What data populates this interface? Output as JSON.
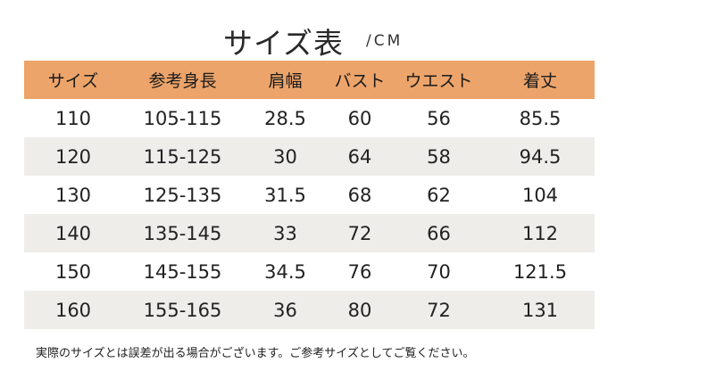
{
  "title": "サイズ表",
  "unit": "/CM",
  "headers": [
    "サイズ",
    "参考身長",
    "肩幅",
    "バスト",
    "ウエスト",
    "着丈"
  ],
  "rows": [
    [
      "110",
      "105-115",
      "28.5",
      "60",
      "56",
      "85.5"
    ],
    [
      "120",
      "115-125",
      "30",
      "64",
      "58",
      "94.5"
    ],
    [
      "130",
      "125-135",
      "31.5",
      "68",
      "62",
      "104"
    ],
    [
      "140",
      "135-145",
      "33",
      "72",
      "66",
      "112"
    ],
    [
      "150",
      "145-155",
      "34.5",
      "76",
      "70",
      "121.5"
    ],
    [
      "160",
      "155-165",
      "36",
      "80",
      "72",
      "131"
    ]
  ],
  "note": "実際のサイズとは誤差が出る場合がございます。ご参考サイズとしてご覧ください。",
  "colors": {
    "header_bg": "#eca46a",
    "stripe_bg": "#efedea"
  }
}
